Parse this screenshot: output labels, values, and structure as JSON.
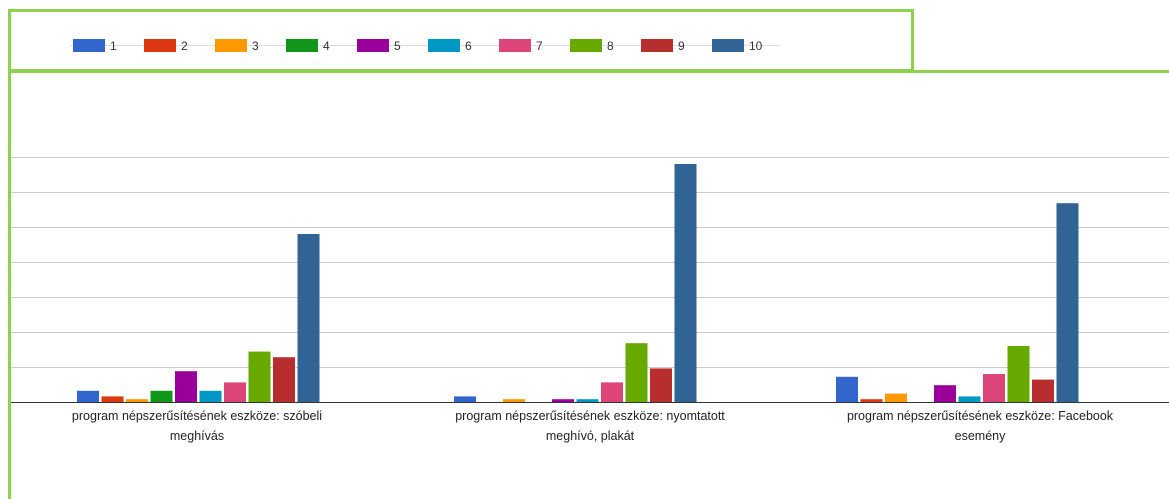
{
  "chart_data": {
    "type": "bar",
    "categories": [
      [
        "program népszerűsítésének eszköze: szóbeli",
        "meghívás"
      ],
      [
        "program népszerűsítésének eszköze: nyomtatott",
        "meghívó, plakát"
      ],
      [
        "program népszerűsítésének eszköze: Facebook",
        "esemény"
      ]
    ],
    "series": [
      {
        "name": "1",
        "color": "#3366cc",
        "values": [
          4,
          2,
          9
        ]
      },
      {
        "name": "2",
        "color": "#dc3912",
        "values": [
          2,
          0,
          1
        ]
      },
      {
        "name": "3",
        "color": "#ff9900",
        "values": [
          1,
          1,
          3
        ]
      },
      {
        "name": "4",
        "color": "#109618",
        "values": [
          4,
          0,
          0
        ]
      },
      {
        "name": "5",
        "color": "#990099",
        "values": [
          11,
          1,
          6
        ]
      },
      {
        "name": "6",
        "color": "#0099c6",
        "values": [
          4,
          1,
          2
        ]
      },
      {
        "name": "7",
        "color": "#dd4477",
        "values": [
          7,
          7,
          10
        ]
      },
      {
        "name": "8",
        "color": "#66aa00",
        "values": [
          18,
          21,
          20
        ]
      },
      {
        "name": "9",
        "color": "#b82e2e",
        "values": [
          16,
          12,
          8
        ]
      },
      {
        "name": "10",
        "color": "#316395",
        "values": [
          60,
          85,
          71
        ]
      }
    ],
    "ylim": [
      0,
      100
    ],
    "gridlines": [
      0,
      12.5,
      25,
      37.5,
      50,
      62.5,
      75,
      87.5
    ],
    "grid": true,
    "legend_position": "top",
    "title": "",
    "xlabel": "",
    "ylabel": ""
  }
}
